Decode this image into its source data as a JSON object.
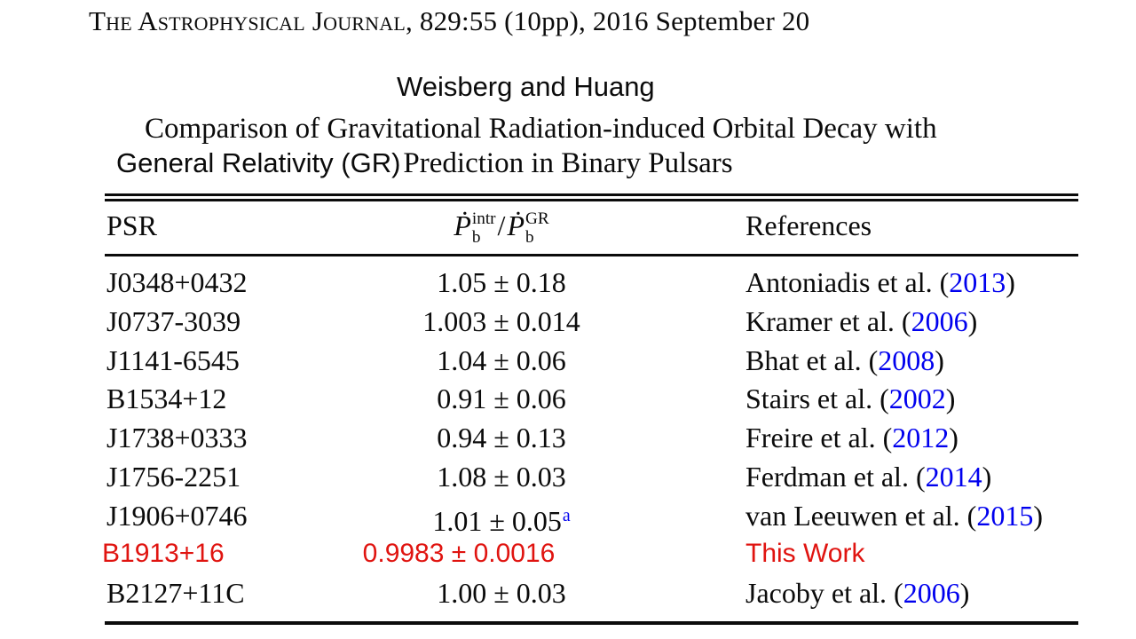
{
  "header": {
    "journal_name": "The Astrophysical Journal",
    "issue_info": ", 829:55 (10pp), 2016 September 20",
    "authors": "Weisberg and Huang"
  },
  "caption": {
    "line1": "Comparison of Gravitational Radiation-induced Orbital Decay with",
    "annotation": "General Relativity (GR)",
    "line2_rest": "Prediction in Binary Pulsars"
  },
  "colors": {
    "link_blue": "#0000ee",
    "highlight_red": "#e01410"
  },
  "table": {
    "header": {
      "col_psr": "PSR",
      "col_refs": "References",
      "math": {
        "p1": "Ṗ",
        "sup1": "intr",
        "sub1": "b",
        "slash": "/",
        "p2": "Ṗ",
        "sup2": "GR",
        "sub2": "b"
      }
    },
    "rows": [
      {
        "psr": "J0348+0432",
        "value": "1.05 ± 0.18",
        "note": "",
        "ref_pre": "Antoniadis et al. (",
        "ref_year": "2013",
        "ref_post": ")",
        "highlight": false
      },
      {
        "psr": "J0737-3039",
        "value": "1.003 ± 0.014",
        "note": "",
        "ref_pre": "Kramer et al. (",
        "ref_year": "2006",
        "ref_post": ")",
        "highlight": false
      },
      {
        "psr": "J1141-6545",
        "value": "1.04 ± 0.06",
        "note": "",
        "ref_pre": "Bhat et al. (",
        "ref_year": "2008",
        "ref_post": ")",
        "highlight": false
      },
      {
        "psr": "B1534+12",
        "value": "0.91 ± 0.06",
        "note": "",
        "ref_pre": "Stairs et al. (",
        "ref_year": "2002",
        "ref_post": ")",
        "highlight": false
      },
      {
        "psr": "J1738+0333",
        "value": "0.94 ± 0.13",
        "note": "",
        "ref_pre": "Freire et al. (",
        "ref_year": "2012",
        "ref_post": ")",
        "highlight": false
      },
      {
        "psr": "J1756-2251",
        "value": "1.08 ± 0.03",
        "note": "",
        "ref_pre": "Ferdman et al. (",
        "ref_year": "2014",
        "ref_post": ")",
        "highlight": false
      },
      {
        "psr": "J1906+0746",
        "value": "1.01 ± 0.05",
        "note": "a",
        "ref_pre": "van Leeuwen et al. (",
        "ref_year": "2015",
        "ref_post": ")",
        "highlight": false
      },
      {
        "psr": "B1913+16",
        "value": "0.9983 ± 0.0016",
        "note": "",
        "ref_pre": "This Work",
        "ref_year": "",
        "ref_post": "",
        "highlight": true
      },
      {
        "psr": "B2127+11C",
        "value": "1.00 ± 0.03",
        "note": "",
        "ref_pre": "Jacoby et al. (",
        "ref_year": "2006",
        "ref_post": ")",
        "highlight": false
      }
    ]
  }
}
